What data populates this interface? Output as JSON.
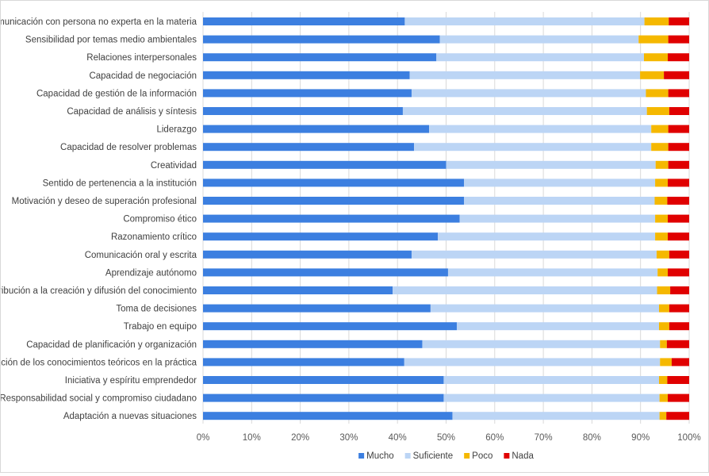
{
  "chart_data": {
    "type": "bar",
    "orientation": "horizontal",
    "stacked": "percent",
    "title": "",
    "xlabel": "",
    "ylabel": "",
    "xlim": [
      0,
      100
    ],
    "x_ticks": [
      "0%",
      "10%",
      "20%",
      "30%",
      "40%",
      "50%",
      "60%",
      "70%",
      "80%",
      "90%",
      "100%"
    ],
    "grid": "vertical",
    "legend_position": "bottom",
    "categories": [
      "Comunicación con persona no experta en la materia",
      "Sensibilidad por temas medio ambientales",
      "Relaciones interpersonales",
      "Capacidad de negociación",
      "Capacidad de gestión de la información",
      "Capacidad de análisis y síntesis",
      "Liderazgo",
      "Capacidad de resolver problemas",
      "Creatividad",
      "Sentido de pertenencia a la institución",
      "Motivación y deseo de superación profesional",
      "Compromiso ético",
      "Razonamiento crítico",
      "Comunicación oral y escrita",
      "Aprendizaje autónomo",
      "Contribución a la creación y difusión del conocimiento",
      "Toma de decisiones",
      "Trabajo en equipo",
      "Capacidad de planificación y organización",
      "Aplicación de los conocimientos teóricos en la práctica",
      "Iniciativa y espíritu emprendedor",
      "Responsabilidad social y compromiso ciudadano",
      "Adaptación a nuevas situaciones"
    ],
    "series": [
      {
        "name": "Mucho",
        "color": "#3c7fe0",
        "values": [
          41.5,
          48.7,
          48.0,
          42.5,
          42.9,
          41.1,
          46.5,
          43.4,
          50.0,
          53.7,
          53.7,
          52.8,
          48.3,
          42.9,
          50.4,
          39.0,
          46.8,
          52.2,
          45.1,
          41.4,
          49.5,
          49.5,
          51.3
        ]
      },
      {
        "name": "Suficiente",
        "color": "#bcd5f5",
        "values": [
          49.3,
          40.9,
          42.7,
          47.4,
          48.2,
          50.2,
          45.7,
          48.8,
          43.1,
          39.3,
          39.2,
          40.2,
          44.7,
          50.4,
          43.1,
          54.4,
          47.0,
          41.6,
          48.9,
          52.6,
          44.3,
          44.4,
          42.6
        ]
      },
      {
        "name": "Poco",
        "color": "#f5b800",
        "values": [
          5.0,
          6.1,
          4.9,
          4.9,
          4.6,
          4.6,
          3.5,
          3.5,
          2.6,
          2.6,
          2.6,
          2.6,
          2.6,
          2.6,
          2.1,
          2.7,
          2.1,
          2.1,
          1.4,
          2.4,
          1.7,
          1.7,
          1.4
        ]
      },
      {
        "name": "Nada",
        "color": "#e00000",
        "values": [
          4.2,
          4.3,
          4.4,
          5.2,
          4.3,
          4.1,
          4.3,
          4.3,
          4.3,
          4.4,
          4.5,
          4.4,
          4.4,
          4.1,
          4.4,
          3.9,
          4.1,
          4.1,
          4.6,
          3.6,
          4.5,
          4.4,
          4.7
        ]
      }
    ]
  }
}
